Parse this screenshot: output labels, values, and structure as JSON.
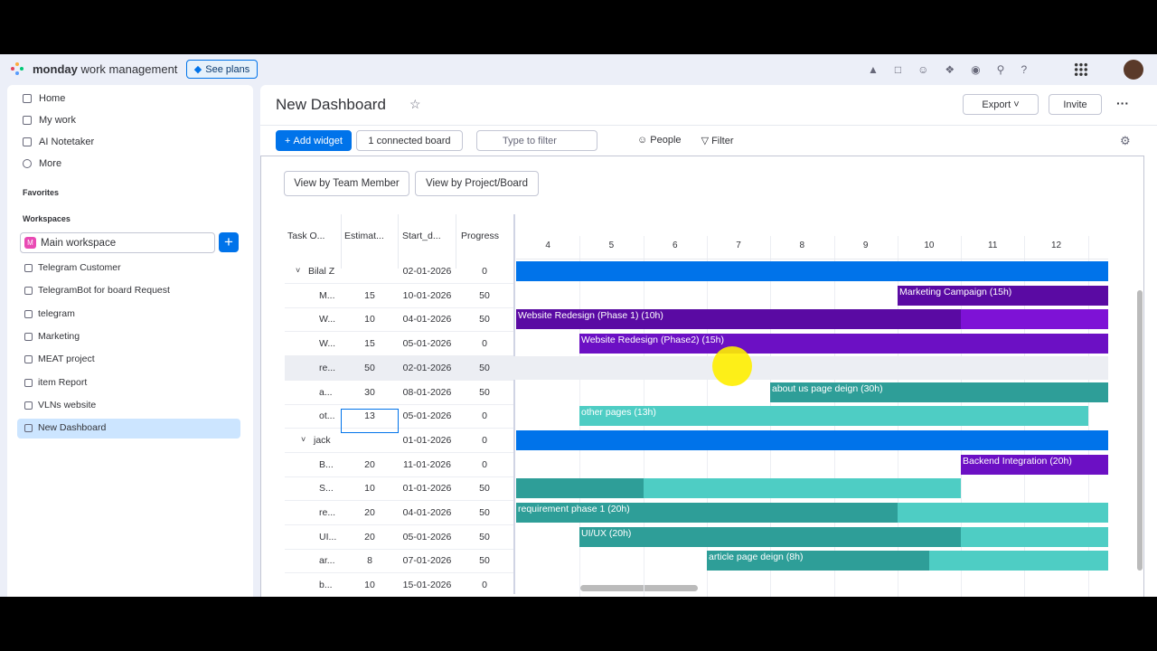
{
  "topbar": {
    "brand": "monday",
    "brand_suffix": "work management",
    "see_plans": "See plans"
  },
  "sidebar": {
    "nav": [
      "Home",
      "My work",
      "AI Notetaker",
      "More"
    ],
    "favorites": "Favorites",
    "workspaces": "Workspaces",
    "workspace": "Main workspace",
    "boards": [
      "Telegram Customer",
      "TelegramBot for board Request",
      "telegram",
      "Marketing",
      "MEAT project",
      "item Report",
      "VLNs website",
      "New Dashboard"
    ]
  },
  "header": {
    "title": "New Dashboard",
    "export": "Export",
    "invite": "Invite"
  },
  "toolbar": {
    "add_widget": "Add widget",
    "connected": "1 connected board",
    "filter_placeholder": "Type to filter",
    "people": "People",
    "filter": "Filter"
  },
  "widget": {
    "view_buttons": [
      "View by Team Member",
      "View by Project/Board"
    ],
    "columns": [
      "Task O...",
      "Estimat...",
      "Start_d...",
      "Progress"
    ],
    "days": [
      "4",
      "5",
      "6",
      "7",
      "8",
      "9",
      "10",
      "11",
      "12"
    ],
    "rows": [
      {
        "task": "Bilal Z",
        "start": "02-01-2026",
        "progress": "0"
      },
      {
        "task": "M...",
        "estimate": "15",
        "start": "10-01-2026",
        "progress": "50",
        "bar_label": "Marketing Campaign (15h)"
      },
      {
        "task": "W...",
        "estimate": "10",
        "start": "04-01-2026",
        "progress": "50",
        "bar_label": "Website Redesign (Phase 1) (10h)"
      },
      {
        "task": "W...",
        "estimate": "15",
        "start": "05-01-2026",
        "progress": "0",
        "bar_label": "Website Redesign (Phase2) (15h)"
      },
      {
        "task": "re...",
        "estimate": "50",
        "start": "02-01-2026",
        "progress": "50"
      },
      {
        "task": "a...",
        "estimate": "30",
        "start": "08-01-2026",
        "progress": "50",
        "bar_label": "about us page deign (30h)"
      },
      {
        "task": "ot...",
        "estimate": "13",
        "start": "05-01-2026",
        "progress": "0",
        "bar_label": "other pages (13h)"
      },
      {
        "task": "jack",
        "start": "01-01-2026",
        "progress": "0"
      },
      {
        "task": "B...",
        "estimate": "20",
        "start": "11-01-2026",
        "progress": "0",
        "bar_label": "Backend Integration (20h)"
      },
      {
        "task": "S...",
        "estimate": "10",
        "start": "01-01-2026",
        "progress": "50"
      },
      {
        "task": "re...",
        "estimate": "20",
        "start": "04-01-2026",
        "progress": "50",
        "bar_label": "requirement phase 1 (20h)"
      },
      {
        "task": "UI...",
        "estimate": "20",
        "start": "05-01-2026",
        "progress": "50",
        "bar_label": "UI/UX (20h)"
      },
      {
        "task": "ar...",
        "estimate": "8",
        "start": "07-01-2026",
        "progress": "50",
        "bar_label": "article page deign (8h)"
      },
      {
        "task": "b...",
        "estimate": "10",
        "start": "15-01-2026",
        "progress": "0"
      }
    ]
  }
}
